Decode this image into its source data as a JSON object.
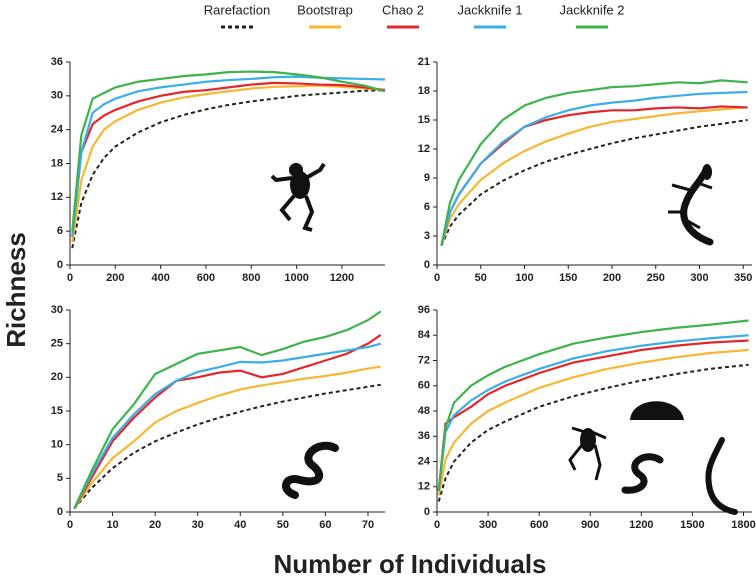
{
  "y_label": "Richness",
  "x_label": "Number of Individuals",
  "chart_data": [
    {
      "type": "line",
      "xlim": [
        0,
        1390
      ],
      "ylim": [
        0,
        36
      ],
      "xticks": [
        0,
        200,
        400,
        600,
        800,
        1000,
        1200
      ],
      "yticks": [
        0,
        6,
        12,
        18,
        24,
        30,
        36
      ],
      "x": [
        10,
        50,
        100,
        150,
        200,
        300,
        400,
        500,
        600,
        700,
        800,
        900,
        1000,
        1100,
        1200,
        1300,
        1390
      ],
      "series": [
        {
          "name": "Rarefaction",
          "color": "#222222",
          "dashed": true,
          "values": [
            3,
            11,
            16,
            19,
            21,
            23.5,
            25.3,
            26.6,
            27.6,
            28.4,
            29.0,
            29.5,
            30.0,
            30.3,
            30.6,
            30.9,
            31.0
          ]
        },
        {
          "name": "Bootstrap",
          "color": "#f7b733",
          "values": [
            4,
            15,
            21,
            24,
            25.5,
            27.5,
            28.8,
            29.7,
            30.3,
            30.8,
            31.3,
            31.6,
            31.7,
            31.8,
            31.6,
            31.3,
            31.1
          ]
        },
        {
          "name": "Chao 2",
          "color": "#e3262b",
          "values": [
            5,
            20,
            25,
            26.5,
            27.5,
            29,
            30,
            30.7,
            31,
            31.5,
            32,
            32.3,
            32.2,
            32,
            31.9,
            31.5,
            31
          ]
        },
        {
          "name": "Jackknife 1",
          "color": "#3aaee6",
          "values": [
            5,
            20,
            27,
            28.5,
            29.5,
            30.8,
            31.5,
            32,
            32.5,
            32.8,
            33,
            33.3,
            33.4,
            33.2,
            33.1,
            33,
            32.9
          ]
        },
        {
          "name": "Jackknife 2",
          "color": "#3cb44b",
          "values": [
            6,
            23,
            29.5,
            30.5,
            31.5,
            32.5,
            33,
            33.5,
            33.8,
            34.2,
            34.3,
            34.2,
            33.8,
            33.3,
            32.5,
            31.8,
            30.8
          ]
        }
      ]
    },
    {
      "type": "line",
      "xlim": [
        0,
        360
      ],
      "ylim": [
        0,
        21
      ],
      "xticks": [
        0,
        50,
        100,
        150,
        200,
        250,
        300,
        350
      ],
      "yticks": [
        0,
        3,
        6,
        9,
        12,
        15,
        18,
        21
      ],
      "x": [
        5,
        15,
        25,
        50,
        75,
        100,
        125,
        150,
        175,
        200,
        225,
        250,
        275,
        300,
        325,
        355
      ],
      "series": [
        {
          "color": "#222222",
          "dashed": true,
          "values": [
            2,
            4,
            5.2,
            7.3,
            8.7,
            9.8,
            10.7,
            11.4,
            12.0,
            12.6,
            13.1,
            13.5,
            13.9,
            14.3,
            14.6,
            15.0
          ]
        },
        {
          "color": "#f7b733",
          "values": [
            2,
            4.8,
            6.3,
            8.8,
            10.5,
            11.8,
            12.8,
            13.6,
            14.3,
            14.8,
            15.1,
            15.4,
            15.7,
            15.9,
            16.1,
            16.3
          ]
        },
        {
          "color": "#e3262b",
          "values": [
            2,
            5.5,
            7.3,
            10.5,
            12.5,
            14.3,
            15,
            15.5,
            15.8,
            16,
            16,
            16.2,
            16.3,
            16.2,
            16.4,
            16.3
          ]
        },
        {
          "color": "#3aaee6",
          "values": [
            2,
            5.5,
            7.3,
            10.5,
            12.7,
            14.3,
            15.3,
            16,
            16.5,
            16.8,
            17,
            17.3,
            17.5,
            17.7,
            17.8,
            17.9
          ]
        },
        {
          "color": "#3cb44b",
          "values": [
            2,
            6.5,
            8.8,
            12.5,
            15,
            16.5,
            17.3,
            17.8,
            18.1,
            18.4,
            18.5,
            18.7,
            18.9,
            18.8,
            19.1,
            18.9
          ]
        }
      ]
    },
    {
      "type": "line",
      "xlim": [
        0,
        74
      ],
      "ylim": [
        0,
        30
      ],
      "xticks": [
        0,
        10,
        20,
        30,
        40,
        50,
        60,
        70
      ],
      "yticks": [
        0,
        5,
        10,
        15,
        20,
        25,
        30
      ],
      "x": [
        1,
        5,
        10,
        15,
        20,
        25,
        30,
        35,
        40,
        45,
        50,
        55,
        60,
        65,
        70,
        73
      ],
      "series": [
        {
          "color": "#222222",
          "dashed": true,
          "values": [
            0.5,
            3.5,
            6.5,
            8.8,
            10.5,
            11.8,
            13,
            14,
            14.9,
            15.7,
            16.4,
            17,
            17.6,
            18.1,
            18.6,
            18.9
          ]
        },
        {
          "color": "#f7b733",
          "values": [
            0.5,
            4.2,
            8,
            10.5,
            13.3,
            15,
            16.2,
            17.3,
            18.2,
            18.8,
            19.3,
            19.8,
            20.2,
            20.7,
            21.3,
            21.6
          ]
        },
        {
          "color": "#e3262b",
          "values": [
            0.5,
            5,
            10.5,
            14,
            17,
            19.5,
            20,
            20.7,
            21,
            20,
            20.5,
            21.5,
            22.5,
            23.5,
            25,
            26.3
          ]
        },
        {
          "color": "#3aaee6",
          "values": [
            0.5,
            5.5,
            11,
            14.5,
            17.5,
            19.5,
            20.8,
            21.5,
            22.3,
            22.2,
            22.5,
            23,
            23.5,
            24,
            24.5,
            25
          ]
        },
        {
          "color": "#3cb44b",
          "values": [
            0.5,
            6,
            12.3,
            16,
            20.5,
            22,
            23.5,
            24,
            24.5,
            23.3,
            24.2,
            25.3,
            26,
            27,
            28.5,
            29.8
          ]
        }
      ]
    },
    {
      "type": "line",
      "xlim": [
        0,
        1850
      ],
      "ylim": [
        0,
        96
      ],
      "xticks": [
        0,
        300,
        600,
        900,
        1200,
        1500,
        1800
      ],
      "yticks": [
        0,
        12,
        24,
        36,
        48,
        60,
        72,
        84,
        96
      ],
      "x": [
        10,
        50,
        100,
        200,
        300,
        400,
        600,
        800,
        1000,
        1200,
        1400,
        1600,
        1830
      ],
      "series": [
        {
          "color": "#222222",
          "dashed": true,
          "values": [
            5,
            16,
            24,
            33,
            39,
            43,
            50,
            55,
            59,
            62.5,
            65.5,
            68,
            70
          ]
        },
        {
          "color": "#f7b733",
          "values": [
            8,
            25,
            33,
            42,
            48,
            52,
            59,
            64,
            68,
            71,
            73.5,
            75.5,
            77
          ]
        },
        {
          "color": "#e3262b",
          "values": [
            10,
            42,
            45,
            50,
            56,
            60,
            66,
            71,
            74,
            77,
            79,
            80.5,
            81.5
          ]
        },
        {
          "color": "#3aaee6",
          "values": [
            10,
            38,
            46,
            53,
            58,
            62,
            68,
            73,
            76.5,
            79,
            81,
            82.5,
            84
          ]
        },
        {
          "color": "#3cb44b",
          "values": [
            10,
            40,
            52,
            60,
            65,
            69,
            75,
            80,
            83,
            85.5,
            87.5,
            89,
            91
          ]
        }
      ]
    }
  ]
}
